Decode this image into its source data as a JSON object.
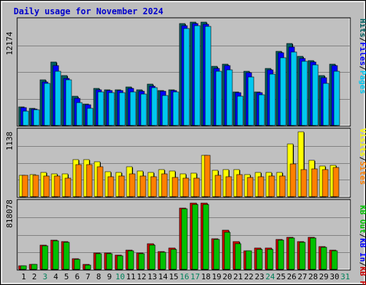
{
  "title": "Daily usage for November 2024",
  "colors": {
    "background": "#bdbdbd",
    "plot_bg": "#c0c0c0",
    "title": "#0000cc",
    "hits": "#006060",
    "files": "#0000ff",
    "pages": "#00c8f0",
    "visits": "#ffff00",
    "sites": "#ff8000",
    "kb_in": "#00c000",
    "kb_out": "#0000ff",
    "kb_f": "#cc0000",
    "weekend_day": "#00805a"
  },
  "chart_data": [
    {
      "type": "bar",
      "name": "hits-files-pages",
      "max_label": "12174",
      "legend": [
        "Pages",
        "Files",
        "Hits"
      ],
      "ylim": [
        0,
        12174
      ],
      "categories": [
        "1",
        "2",
        "3",
        "4",
        "5",
        "6",
        "7",
        "8",
        "9",
        "10",
        "11",
        "12",
        "13",
        "14",
        "15",
        "16",
        "17",
        "18",
        "19",
        "20",
        "21",
        "22",
        "23",
        "24",
        "25",
        "26",
        "27",
        "28",
        "29",
        "30",
        "31"
      ],
      "series": [
        {
          "name": "Hits",
          "values": [
            2200,
            2000,
            5300,
            7400,
            5800,
            3400,
            2500,
            4300,
            4200,
            4200,
            4500,
            4200,
            4800,
            4100,
            4200,
            11900,
            12050,
            12100,
            6900,
            7200,
            3900,
            6300,
            3900,
            6700,
            8700,
            9600,
            8100,
            7600,
            5800,
            7200,
            0
          ]
        },
        {
          "name": "Files",
          "values": [
            2100,
            1900,
            5100,
            7000,
            5500,
            3200,
            2400,
            4200,
            4100,
            4100,
            4300,
            4000,
            4600,
            4000,
            4100,
            11700,
            11900,
            11800,
            6700,
            7000,
            3800,
            6200,
            3800,
            6500,
            8500,
            9200,
            7800,
            7400,
            5600,
            7000,
            0
          ]
        },
        {
          "name": "Pages",
          "values": [
            1700,
            1800,
            4900,
            6300,
            5300,
            2700,
            2000,
            3900,
            3800,
            3800,
            3900,
            3700,
            4400,
            3500,
            3900,
            11300,
            11700,
            11600,
            6300,
            6500,
            3400,
            5700,
            3600,
            6000,
            7900,
            8600,
            7500,
            7100,
            4900,
            6300,
            0
          ]
        }
      ]
    },
    {
      "type": "bar",
      "name": "visits-sites",
      "max_label": "1138",
      "legend": [
        "Sites",
        "/",
        "Visits"
      ],
      "ylim": [
        0,
        1138
      ],
      "categories": [
        "1",
        "2",
        "3",
        "4",
        "5",
        "6",
        "7",
        "8",
        "9",
        "10",
        "11",
        "12",
        "13",
        "14",
        "15",
        "16",
        "17",
        "18",
        "19",
        "20",
        "21",
        "22",
        "23",
        "24",
        "25",
        "26",
        "27",
        "28",
        "29",
        "30",
        "31"
      ],
      "series": [
        {
          "name": "Visits",
          "values": [
            380,
            390,
            420,
            400,
            400,
            650,
            650,
            610,
            440,
            420,
            520,
            450,
            420,
            470,
            450,
            400,
            410,
            730,
            460,
            470,
            470,
            390,
            420,
            430,
            420,
            930,
            1138,
            640,
            540,
            550,
            0
          ]
        },
        {
          "name": "Sites",
          "values": [
            370,
            370,
            360,
            360,
            330,
            560,
            560,
            520,
            350,
            360,
            400,
            360,
            350,
            400,
            340,
            330,
            320,
            730,
            370,
            350,
            390,
            340,
            350,
            360,
            360,
            580,
            480,
            490,
            470,
            510,
            0
          ]
        }
      ]
    },
    {
      "type": "bar",
      "name": "kbytes",
      "max_label": "818078",
      "legend": [
        "KB F",
        "/",
        "KB In",
        "/",
        "KB Out"
      ],
      "ylim": [
        0,
        818078
      ],
      "categories": [
        "1",
        "2",
        "3",
        "4",
        "5",
        "6",
        "7",
        "8",
        "9",
        "10",
        "11",
        "12",
        "13",
        "14",
        "15",
        "16",
        "17",
        "18",
        "19",
        "20",
        "21",
        "22",
        "23",
        "24",
        "25",
        "26",
        "27",
        "28",
        "29",
        "30",
        "31"
      ],
      "series": [
        {
          "name": "KB In",
          "values": [
            40000,
            60000,
            300000,
            360000,
            340000,
            130000,
            60000,
            200000,
            200000,
            180000,
            240000,
            200000,
            320000,
            220000,
            260000,
            760000,
            818078,
            818078,
            380000,
            480000,
            340000,
            230000,
            260000,
            260000,
            370000,
            400000,
            340000,
            400000,
            280000,
            240000,
            0
          ]
        },
        {
          "name": "KB Out",
          "values": [
            40000,
            60000,
            290000,
            350000,
            330000,
            120000,
            50000,
            190000,
            190000,
            170000,
            230000,
            190000,
            300000,
            210000,
            250000,
            750000,
            800000,
            800000,
            370000,
            460000,
            320000,
            230000,
            250000,
            250000,
            360000,
            390000,
            330000,
            390000,
            270000,
            230000,
            0
          ]
        }
      ]
    }
  ]
}
